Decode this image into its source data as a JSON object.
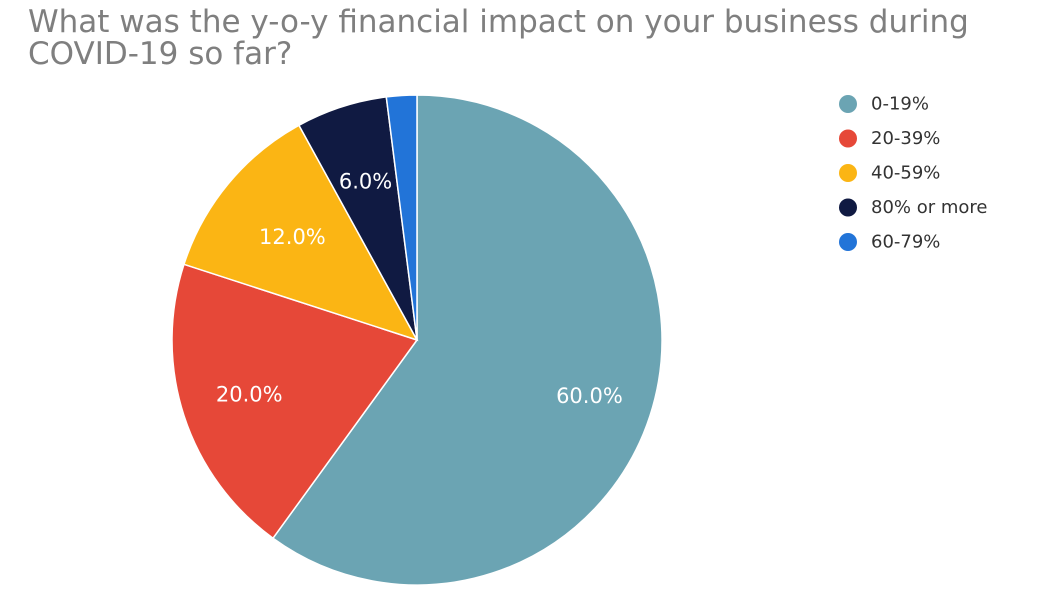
{
  "chart_data": {
    "type": "pie",
    "title": "What was the y-o-y financial impact on your business during COVID-19 so far?",
    "slices": [
      {
        "label": "0-19%",
        "value": 60.0,
        "display": "60.0%",
        "color": "#6ba4b3"
      },
      {
        "label": "20-39%",
        "value": 20.0,
        "display": "20.0%",
        "color": "#e64838"
      },
      {
        "label": "40-59%",
        "value": 12.0,
        "display": "12.0%",
        "color": "#fbb514"
      },
      {
        "label": "80% or more",
        "value": 6.0,
        "display": "6.0%",
        "color": "#101a42"
      },
      {
        "label": "60-79%",
        "value": 2.0,
        "display": "",
        "color": "#2274d8"
      }
    ],
    "legend": [
      "0-19%",
      "20-39%",
      "40-59%",
      "80% or more",
      "60-79%"
    ],
    "legend_position": "top-right",
    "start_angle": "top",
    "direction": "clockwise"
  }
}
